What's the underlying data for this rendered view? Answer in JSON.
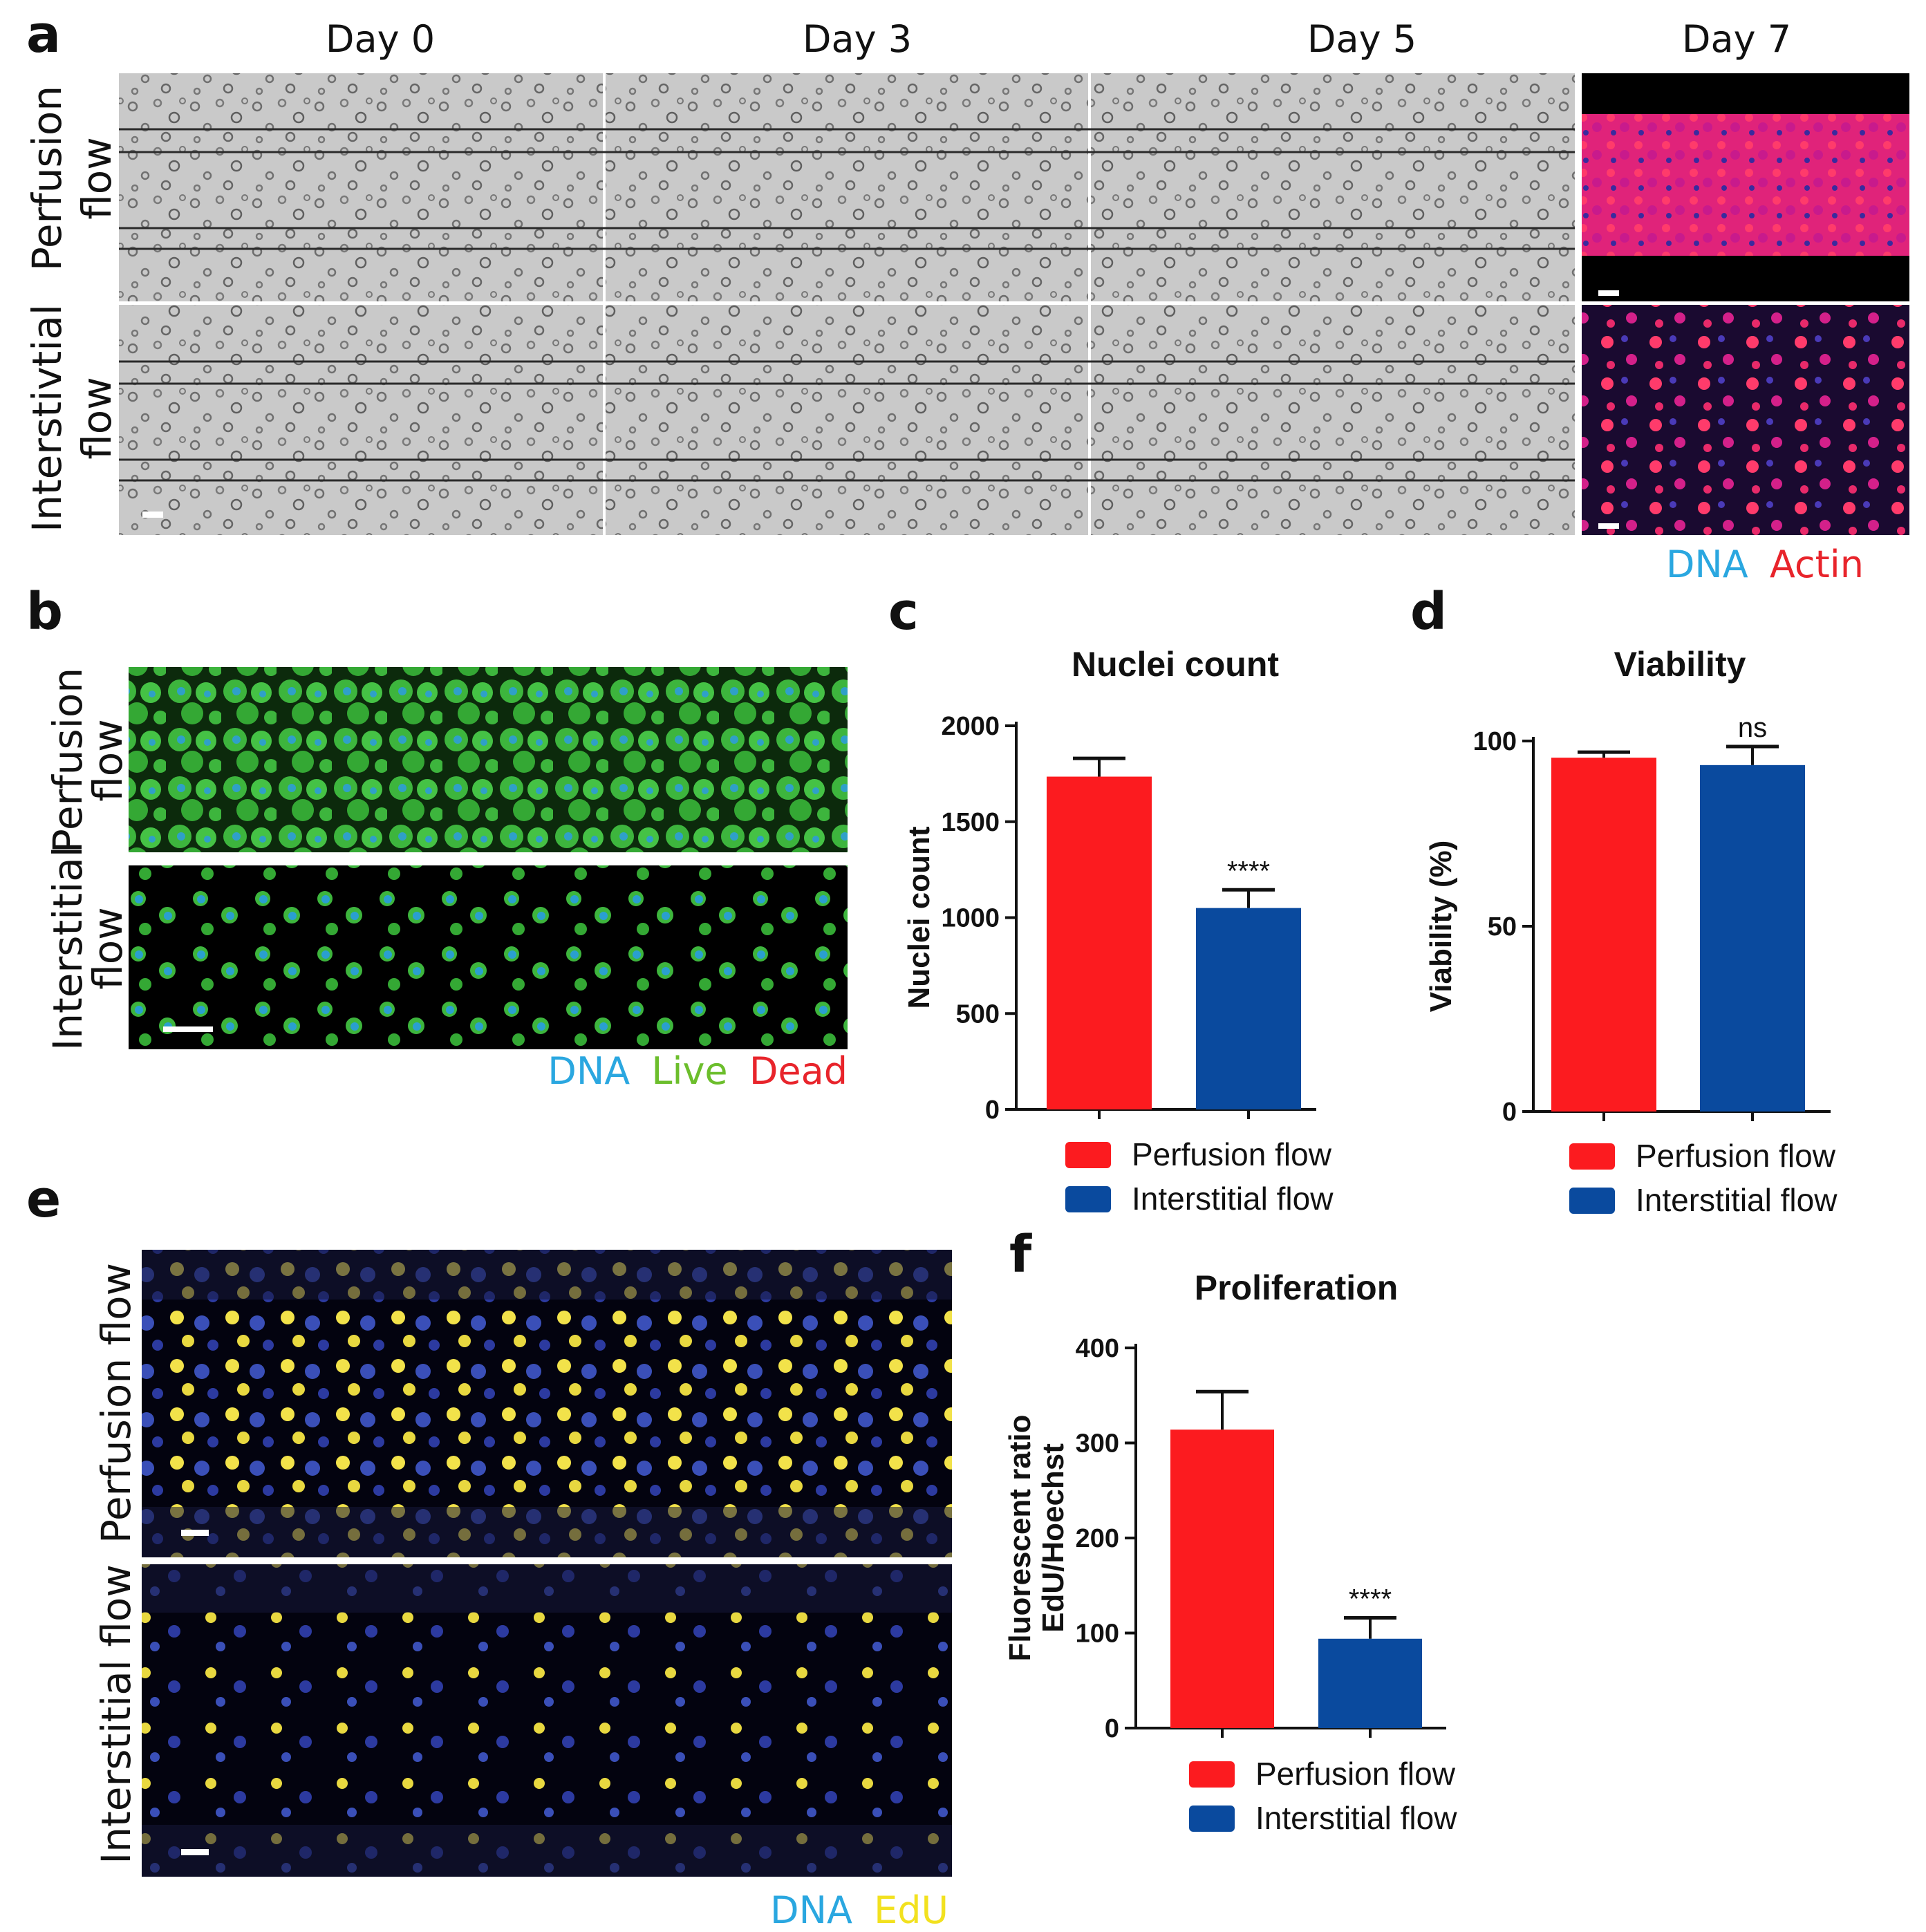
{
  "panel_labels": {
    "a": "a",
    "b": "b",
    "c": "c",
    "d": "d",
    "e": "e",
    "f": "f"
  },
  "panel_a": {
    "columns": [
      "Day 0",
      "Day 3",
      "Day 5",
      "Day 7"
    ],
    "rows": [
      {
        "line1": "Perfusion",
        "line2": "flow"
      },
      {
        "line1": "Interstivtial",
        "line2": "flow"
      }
    ],
    "legend": [
      {
        "label": "DNA",
        "color": "#2aa7e0"
      },
      {
        "label": "Actin",
        "color": "#e8242b"
      }
    ]
  },
  "panel_b": {
    "rows": [
      {
        "line1": "Perfusion",
        "line2": "flow"
      },
      {
        "line1": "Interstitial",
        "line2": "flow"
      }
    ],
    "legend": [
      {
        "label": "DNA",
        "color": "#2aa7e0"
      },
      {
        "label": "Live",
        "color": "#6cbe2c"
      },
      {
        "label": "Dead",
        "color": "#e8242b"
      }
    ]
  },
  "panel_e": {
    "rows": [
      "Perfusion flow",
      "Interstitial flow"
    ],
    "legend": [
      {
        "label": "DNA",
        "color": "#2aa7e0"
      },
      {
        "label": "EdU",
        "color": "#f2e11f"
      }
    ]
  },
  "colors": {
    "perfusion": "#fc1b1f",
    "interstitial": "#0a4a9e"
  },
  "chart_data": [
    {
      "type": "bar",
      "title": "Nuclei count",
      "ylabel": "Nuclei count",
      "xlabel": "",
      "categories": [
        "Perfusion flow",
        "Interstitial flow"
      ],
      "values": [
        1735,
        1050
      ],
      "errors": [
        95,
        95
      ],
      "significance": [
        "",
        "****"
      ],
      "ylim": [
        0,
        2000
      ],
      "yticks": [
        "0",
        "500",
        "1000",
        "1500",
        "2000"
      ],
      "legend": [
        "Perfusion flow",
        "Interstitial flow"
      ],
      "legend_position": "bottom"
    },
    {
      "type": "bar",
      "title": "Viability",
      "ylabel": "Viability (%)",
      "xlabel": "",
      "categories": [
        "Perfusion flow",
        "Interstitial flow"
      ],
      "values": [
        95.5,
        93.5
      ],
      "errors": [
        1.5,
        5
      ],
      "significance": [
        "",
        "ns"
      ],
      "ylim": [
        0,
        100
      ],
      "yticks": [
        "0",
        "50",
        "100"
      ],
      "legend": [
        "Perfusion flow",
        "Interstitial flow"
      ],
      "legend_position": "bottom"
    },
    {
      "type": "bar",
      "title": "Proliferation",
      "ylabel": "Fluorescent ratio EdU/Hoechst",
      "ylabel_lines": [
        "Fluorescent ratio",
        "EdU/Hoechst"
      ],
      "xlabel": "",
      "categories": [
        "Perfusion flow",
        "Interstitial flow"
      ],
      "values": [
        314,
        94
      ],
      "errors": [
        40,
        22
      ],
      "significance": [
        "",
        "****"
      ],
      "ylim": [
        0,
        400
      ],
      "yticks": [
        "0",
        "100",
        "200",
        "300",
        "400"
      ],
      "legend": [
        "Perfusion flow",
        "Interstitial flow"
      ],
      "legend_position": "bottom"
    }
  ]
}
